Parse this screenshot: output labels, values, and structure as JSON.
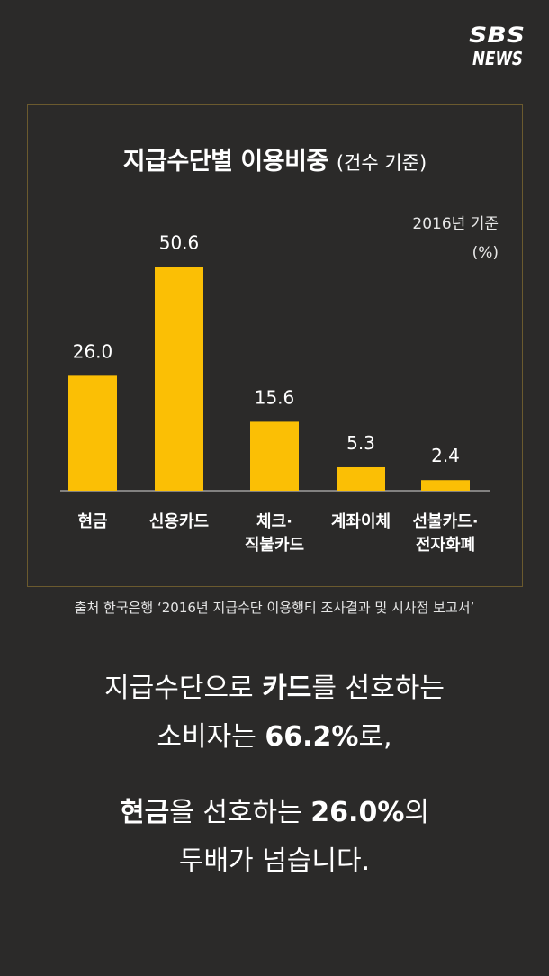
{
  "brand": {
    "logo_text_top": "SBS",
    "logo_text_bottom": "NEWS"
  },
  "colors": {
    "background": "#2b2a29",
    "bar": "#fbbf05",
    "frame": "#6b5a2e",
    "text": "#ffffff"
  },
  "chart": {
    "title": "지급수단별 이용비중",
    "title_sub": "(건수 기준)",
    "note_year": "2016년 기준",
    "note_unit": "(%)",
    "category_lines": [
      [
        "현금"
      ],
      [
        "신용카드"
      ],
      [
        "체크·",
        "직불카드"
      ],
      [
        "계좌이체"
      ],
      [
        "선불카드·",
        "전자화폐"
      ]
    ]
  },
  "chart_data": {
    "type": "bar",
    "categories": [
      "현금",
      "신용카드",
      "체크·직불카드",
      "계좌이체",
      "선불카드·전자화폐"
    ],
    "values": [
      26.0,
      50.6,
      15.6,
      5.3,
      2.4
    ],
    "value_labels": [
      "26.0",
      "50.6",
      "15.6",
      "5.3",
      "2.4"
    ],
    "title": "지급수단별 이용비중 (건수 기준)",
    "ylabel": "(%)",
    "ylim": [
      0,
      55
    ],
    "grid": false,
    "legend": "none"
  },
  "source": "출처 한국은행 ‘2016년 지급수단 이용행티 조사결과 및 시사점 보고서’",
  "message": {
    "line1_a": "지급수단으로 ",
    "line1_b": "카드",
    "line1_c": "를 선호하는",
    "line2_a": "소비자는 ",
    "line2_b": "66.2%",
    "line2_c": "로,",
    "line3_a": "현금",
    "line3_b": "을 선호하는 ",
    "line3_c": "26.0%",
    "line3_d": "의",
    "line4": "두배가 넘습니다."
  }
}
